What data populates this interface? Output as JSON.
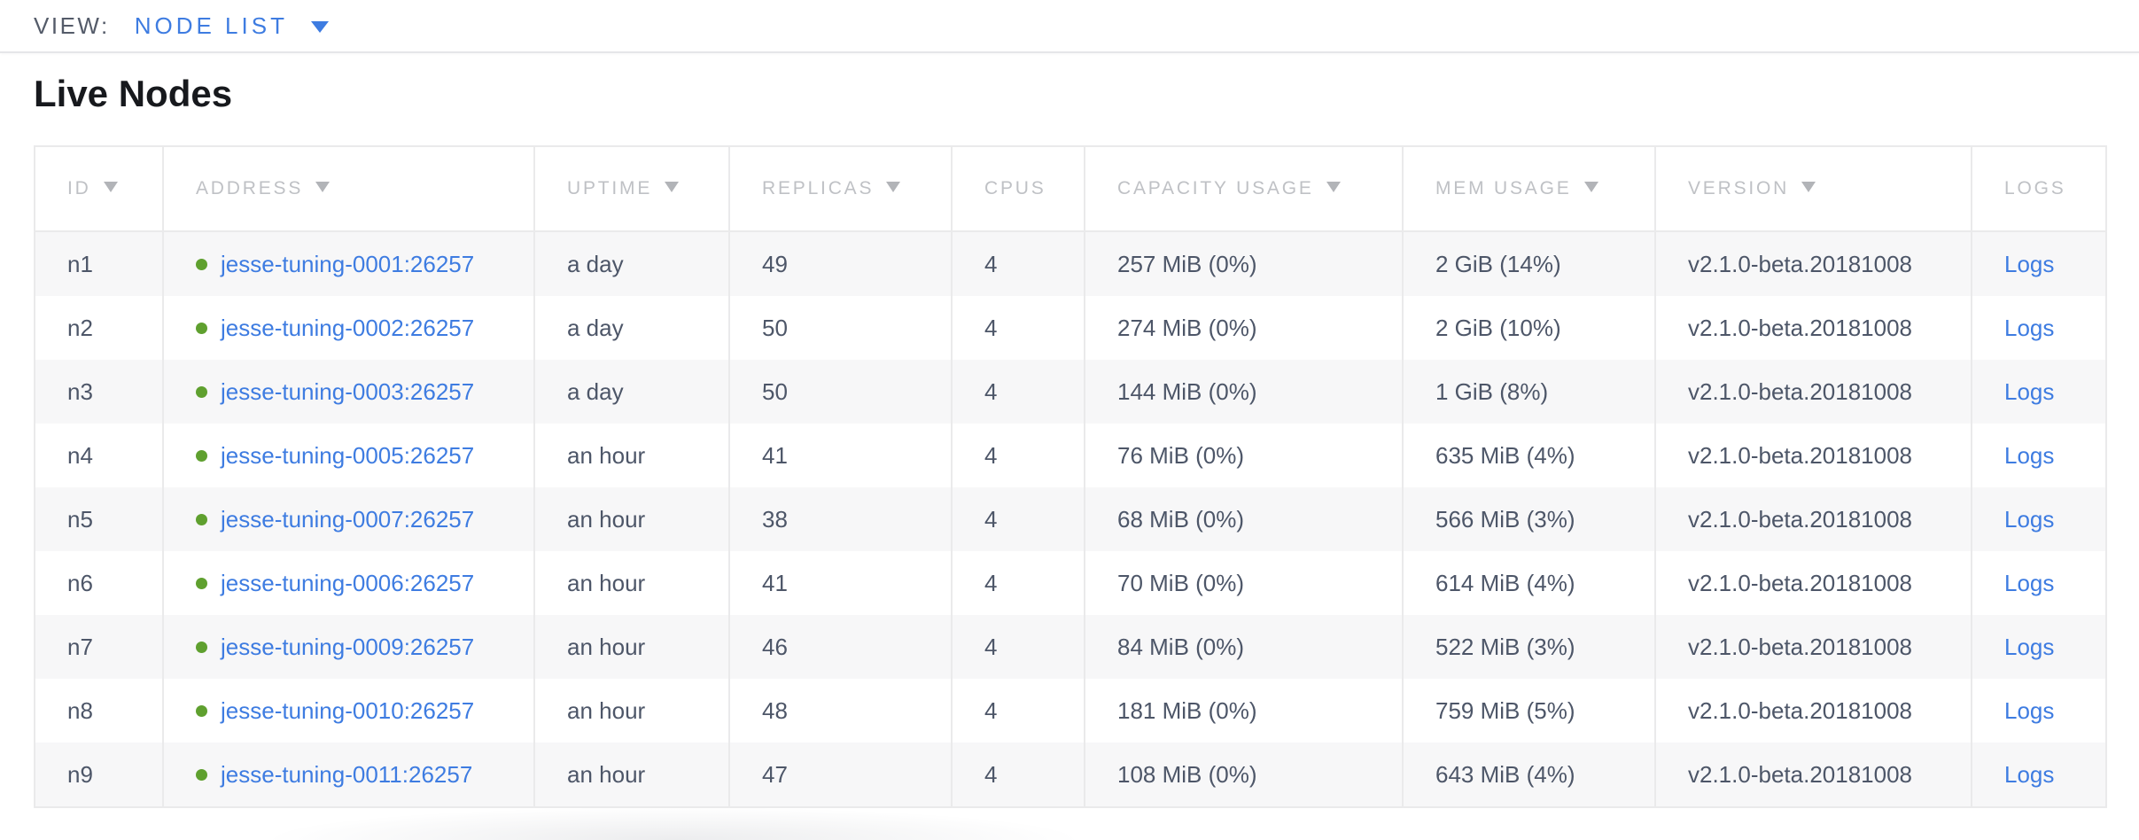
{
  "view_bar": {
    "label": "VIEW:",
    "selected": "NODE LIST"
  },
  "page": {
    "title": "Live Nodes"
  },
  "table": {
    "columns": [
      {
        "key": "id",
        "label": "ID",
        "sortable": true
      },
      {
        "key": "address",
        "label": "ADDRESS",
        "sortable": true
      },
      {
        "key": "uptime",
        "label": "UPTIME",
        "sortable": true
      },
      {
        "key": "replicas",
        "label": "REPLICAS",
        "sortable": true
      },
      {
        "key": "cpus",
        "label": "CPUS",
        "sortable": false
      },
      {
        "key": "capacity",
        "label": "CAPACITY USAGE",
        "sortable": true
      },
      {
        "key": "mem",
        "label": "MEM USAGE",
        "sortable": true
      },
      {
        "key": "version",
        "label": "VERSION",
        "sortable": true
      },
      {
        "key": "logs",
        "label": "LOGS",
        "sortable": false
      }
    ],
    "rows": [
      {
        "id": "n1",
        "address": "jesse-tuning-0001:26257",
        "status": "healthy",
        "uptime": "a day",
        "replicas": "49",
        "cpus": "4",
        "capacity": "257 MiB (0%)",
        "mem": "2 GiB (14%)",
        "version": "v2.1.0-beta.20181008",
        "logs": "Logs"
      },
      {
        "id": "n2",
        "address": "jesse-tuning-0002:26257",
        "status": "healthy",
        "uptime": "a day",
        "replicas": "50",
        "cpus": "4",
        "capacity": "274 MiB (0%)",
        "mem": "2 GiB (10%)",
        "version": "v2.1.0-beta.20181008",
        "logs": "Logs"
      },
      {
        "id": "n3",
        "address": "jesse-tuning-0003:26257",
        "status": "healthy",
        "uptime": "a day",
        "replicas": "50",
        "cpus": "4",
        "capacity": "144 MiB (0%)",
        "mem": "1 GiB (8%)",
        "version": "v2.1.0-beta.20181008",
        "logs": "Logs"
      },
      {
        "id": "n4",
        "address": "jesse-tuning-0005:26257",
        "status": "healthy",
        "uptime": "an hour",
        "replicas": "41",
        "cpus": "4",
        "capacity": "76 MiB (0%)",
        "mem": "635 MiB (4%)",
        "version": "v2.1.0-beta.20181008",
        "logs": "Logs"
      },
      {
        "id": "n5",
        "address": "jesse-tuning-0007:26257",
        "status": "healthy",
        "uptime": "an hour",
        "replicas": "38",
        "cpus": "4",
        "capacity": "68 MiB (0%)",
        "mem": "566 MiB (3%)",
        "version": "v2.1.0-beta.20181008",
        "logs": "Logs"
      },
      {
        "id": "n6",
        "address": "jesse-tuning-0006:26257",
        "status": "healthy",
        "uptime": "an hour",
        "replicas": "41",
        "cpus": "4",
        "capacity": "70 MiB (0%)",
        "mem": "614 MiB (4%)",
        "version": "v2.1.0-beta.20181008",
        "logs": "Logs"
      },
      {
        "id": "n7",
        "address": "jesse-tuning-0009:26257",
        "status": "healthy",
        "uptime": "an hour",
        "replicas": "46",
        "cpus": "4",
        "capacity": "84 MiB (0%)",
        "mem": "522 MiB (3%)",
        "version": "v2.1.0-beta.20181008",
        "logs": "Logs"
      },
      {
        "id": "n8",
        "address": "jesse-tuning-0010:26257",
        "status": "healthy",
        "uptime": "an hour",
        "replicas": "48",
        "cpus": "4",
        "capacity": "181 MiB (0%)",
        "mem": "759 MiB (5%)",
        "version": "v2.1.0-beta.20181008",
        "logs": "Logs"
      },
      {
        "id": "n9",
        "address": "jesse-tuning-0011:26257",
        "status": "healthy",
        "uptime": "an hour",
        "replicas": "47",
        "cpus": "4",
        "capacity": "108 MiB (0%)",
        "mem": "643 MiB (4%)",
        "version": "v2.1.0-beta.20181008",
        "logs": "Logs"
      }
    ]
  },
  "colors": {
    "accent_blue": "#3e7ce1",
    "link_blue": "#3e7ce1",
    "healthy_green": "#5fa02f",
    "header_text_gray": "#bfc1c5",
    "cell_text_slate": "#4d5668",
    "row_stripe": "#f7f7f8",
    "table_border": "#eaeaeb",
    "topbar_divider": "#e5e6e9",
    "title_text": "#17191d",
    "view_label_text": "#545b69"
  }
}
